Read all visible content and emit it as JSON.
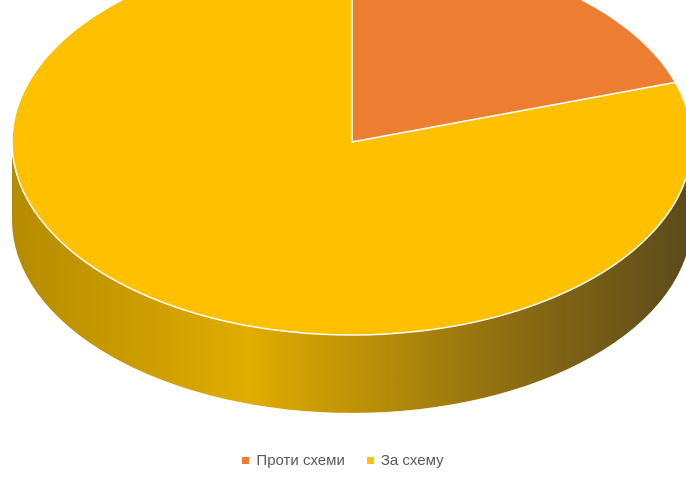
{
  "chart_data": {
    "type": "pie",
    "title": "",
    "categories": [
      "Проти схеми",
      "За схему"
    ],
    "values": [
      20,
      80
    ],
    "unit": "percent",
    "colors": [
      "#ED7D31",
      "#FFC000"
    ],
    "side_colors": [
      "#B8621F",
      "#C59300"
    ],
    "style": "3d",
    "legend_position": "bottom"
  },
  "legend": {
    "items": [
      {
        "label": "Проти схеми",
        "color": "#ED7D31"
      },
      {
        "label": "За схему",
        "color": "#FFC000"
      }
    ]
  }
}
